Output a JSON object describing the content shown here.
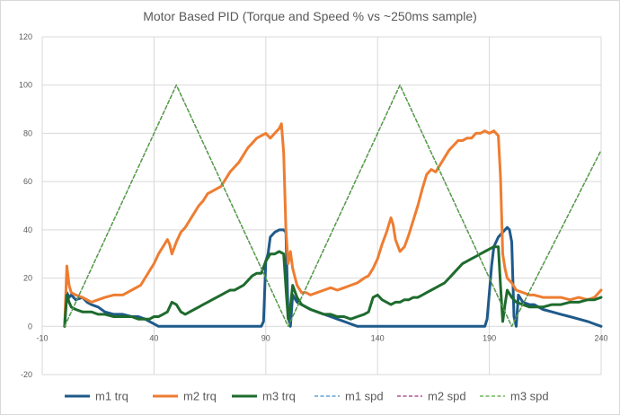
{
  "chart_data": {
    "type": "line",
    "title": "Motor Based PID (Torque and Speed % vs ~250ms sample)",
    "xlabel": "",
    "ylabel": "",
    "xlim": [
      -10,
      240
    ],
    "ylim": [
      -20,
      120
    ],
    "x_ticks": [
      -10,
      40,
      90,
      140,
      190,
      240
    ],
    "y_ticks": [
      -20,
      0,
      20,
      40,
      60,
      80,
      100,
      120
    ],
    "grid": true,
    "legend_position": "bottom",
    "series": [
      {
        "name": "m1 trq",
        "color": "#1f5a8a",
        "style": "solid",
        "points": [
          [
            0,
            0
          ],
          [
            1,
            14
          ],
          [
            2,
            12
          ],
          [
            3,
            13
          ],
          [
            5,
            11
          ],
          [
            8,
            12
          ],
          [
            10,
            10
          ],
          [
            12,
            9
          ],
          [
            15,
            8
          ],
          [
            18,
            6
          ],
          [
            22,
            5
          ],
          [
            26,
            5
          ],
          [
            30,
            4
          ],
          [
            33,
            4
          ],
          [
            36,
            3
          ],
          [
            38,
            2
          ],
          [
            40,
            1
          ],
          [
            42,
            0
          ],
          [
            88,
            0
          ],
          [
            89,
            2
          ],
          [
            90,
            27
          ],
          [
            91,
            30
          ],
          [
            92,
            37
          ],
          [
            94,
            39
          ],
          [
            96,
            40
          ],
          [
            98,
            40
          ],
          [
            99,
            39
          ],
          [
            100,
            4
          ],
          [
            101,
            0
          ],
          [
            102,
            13
          ],
          [
            104,
            10
          ],
          [
            106,
            9
          ],
          [
            108,
            8
          ],
          [
            110,
            7
          ],
          [
            113,
            6
          ],
          [
            116,
            5
          ],
          [
            119,
            4
          ],
          [
            122,
            3
          ],
          [
            125,
            2
          ],
          [
            128,
            1
          ],
          [
            131,
            0
          ],
          [
            188,
            0
          ],
          [
            189,
            3
          ],
          [
            190,
            14
          ],
          [
            191,
            25
          ],
          [
            192,
            33
          ],
          [
            194,
            37
          ],
          [
            196,
            39
          ],
          [
            198,
            41
          ],
          [
            199,
            40
          ],
          [
            200,
            35
          ],
          [
            201,
            4
          ],
          [
            202,
            0
          ],
          [
            203,
            13
          ],
          [
            205,
            10
          ],
          [
            208,
            9
          ],
          [
            210,
            9
          ],
          [
            214,
            7
          ],
          [
            218,
            6
          ],
          [
            222,
            5
          ],
          [
            226,
            4
          ],
          [
            230,
            3
          ],
          [
            234,
            2
          ],
          [
            237,
            1
          ],
          [
            240,
            0
          ]
        ]
      },
      {
        "name": "m2 trq",
        "color": "#ee7d31",
        "style": "solid",
        "points": [
          [
            0,
            0
          ],
          [
            1,
            25
          ],
          [
            2,
            17
          ],
          [
            3,
            14
          ],
          [
            5,
            13
          ],
          [
            8,
            12
          ],
          [
            10,
            11
          ],
          [
            12,
            10
          ],
          [
            15,
            11
          ],
          [
            18,
            12
          ],
          [
            22,
            13
          ],
          [
            26,
            13
          ],
          [
            30,
            15
          ],
          [
            34,
            17
          ],
          [
            36,
            20
          ],
          [
            38,
            23
          ],
          [
            40,
            26
          ],
          [
            42,
            30
          ],
          [
            44,
            33
          ],
          [
            46,
            36
          ],
          [
            47,
            34
          ],
          [
            48,
            30
          ],
          [
            50,
            35
          ],
          [
            52,
            39
          ],
          [
            54,
            41
          ],
          [
            56,
            44
          ],
          [
            58,
            47
          ],
          [
            60,
            50
          ],
          [
            62,
            52
          ],
          [
            64,
            55
          ],
          [
            66,
            56
          ],
          [
            68,
            57
          ],
          [
            70,
            58
          ],
          [
            72,
            61
          ],
          [
            74,
            64
          ],
          [
            76,
            66
          ],
          [
            78,
            68
          ],
          [
            80,
            71
          ],
          [
            82,
            74
          ],
          [
            84,
            76
          ],
          [
            86,
            78
          ],
          [
            88,
            79
          ],
          [
            90,
            80
          ],
          [
            92,
            78
          ],
          [
            94,
            80
          ],
          [
            96,
            82
          ],
          [
            97,
            84
          ],
          [
            98,
            72
          ],
          [
            99,
            40
          ],
          [
            100,
            26
          ],
          [
            101,
            31
          ],
          [
            102,
            24
          ],
          [
            104,
            17
          ],
          [
            106,
            14
          ],
          [
            108,
            14
          ],
          [
            110,
            13
          ],
          [
            113,
            14
          ],
          [
            116,
            15
          ],
          [
            119,
            16
          ],
          [
            122,
            15
          ],
          [
            125,
            16
          ],
          [
            128,
            17
          ],
          [
            131,
            18
          ],
          [
            134,
            20
          ],
          [
            136,
            21
          ],
          [
            138,
            24
          ],
          [
            140,
            28
          ],
          [
            142,
            34
          ],
          [
            144,
            39
          ],
          [
            145,
            42
          ],
          [
            146,
            45
          ],
          [
            147,
            42
          ],
          [
            148,
            36
          ],
          [
            150,
            31
          ],
          [
            152,
            33
          ],
          [
            154,
            38
          ],
          [
            156,
            44
          ],
          [
            158,
            50
          ],
          [
            160,
            57
          ],
          [
            162,
            63
          ],
          [
            164,
            65
          ],
          [
            166,
            64
          ],
          [
            168,
            67
          ],
          [
            170,
            70
          ],
          [
            172,
            73
          ],
          [
            174,
            75
          ],
          [
            176,
            77
          ],
          [
            178,
            77
          ],
          [
            180,
            78
          ],
          [
            182,
            78
          ],
          [
            184,
            80
          ],
          [
            186,
            80
          ],
          [
            188,
            81
          ],
          [
            190,
            80
          ],
          [
            192,
            81
          ],
          [
            194,
            79
          ],
          [
            195,
            62
          ],
          [
            196,
            30
          ],
          [
            197,
            24
          ],
          [
            198,
            20
          ],
          [
            200,
            18
          ],
          [
            202,
            15
          ],
          [
            205,
            14
          ],
          [
            208,
            13
          ],
          [
            210,
            13
          ],
          [
            214,
            12
          ],
          [
            218,
            12
          ],
          [
            222,
            12
          ],
          [
            226,
            11
          ],
          [
            230,
            12
          ],
          [
            234,
            11
          ],
          [
            237,
            12
          ],
          [
            240,
            15
          ]
        ]
      },
      {
        "name": "m3 trq",
        "color": "#1e6b2e",
        "style": "solid",
        "points": [
          [
            0,
            0
          ],
          [
            1,
            13
          ],
          [
            2,
            10
          ],
          [
            3,
            8
          ],
          [
            5,
            7
          ],
          [
            8,
            6
          ],
          [
            10,
            6
          ],
          [
            12,
            6
          ],
          [
            15,
            5
          ],
          [
            18,
            5
          ],
          [
            22,
            4
          ],
          [
            26,
            4
          ],
          [
            30,
            4
          ],
          [
            33,
            3
          ],
          [
            36,
            3
          ],
          [
            38,
            3
          ],
          [
            40,
            4
          ],
          [
            42,
            4
          ],
          [
            44,
            5
          ],
          [
            46,
            6
          ],
          [
            48,
            10
          ],
          [
            50,
            9
          ],
          [
            52,
            6
          ],
          [
            54,
            5
          ],
          [
            56,
            6
          ],
          [
            58,
            7
          ],
          [
            60,
            8
          ],
          [
            62,
            9
          ],
          [
            64,
            10
          ],
          [
            66,
            11
          ],
          [
            68,
            12
          ],
          [
            70,
            13
          ],
          [
            72,
            14
          ],
          [
            74,
            15
          ],
          [
            76,
            15
          ],
          [
            78,
            16
          ],
          [
            80,
            17
          ],
          [
            82,
            19
          ],
          [
            84,
            21
          ],
          [
            86,
            22
          ],
          [
            88,
            22
          ],
          [
            90,
            27
          ],
          [
            92,
            30
          ],
          [
            94,
            30
          ],
          [
            96,
            31
          ],
          [
            98,
            30
          ],
          [
            99,
            16
          ],
          [
            100,
            3
          ],
          [
            101,
            8
          ],
          [
            102,
            17
          ],
          [
            104,
            12
          ],
          [
            106,
            9
          ],
          [
            108,
            8
          ],
          [
            110,
            7
          ],
          [
            113,
            6
          ],
          [
            116,
            5
          ],
          [
            119,
            5
          ],
          [
            122,
            4
          ],
          [
            125,
            4
          ],
          [
            128,
            3
          ],
          [
            131,
            4
          ],
          [
            134,
            5
          ],
          [
            136,
            6
          ],
          [
            138,
            12
          ],
          [
            140,
            13
          ],
          [
            142,
            11
          ],
          [
            144,
            10
          ],
          [
            146,
            9
          ],
          [
            148,
            10
          ],
          [
            150,
            10
          ],
          [
            152,
            11
          ],
          [
            154,
            11
          ],
          [
            156,
            12
          ],
          [
            158,
            12
          ],
          [
            160,
            13
          ],
          [
            162,
            14
          ],
          [
            164,
            15
          ],
          [
            166,
            16
          ],
          [
            168,
            17
          ],
          [
            170,
            18
          ],
          [
            172,
            20
          ],
          [
            174,
            22
          ],
          [
            176,
            24
          ],
          [
            178,
            26
          ],
          [
            180,
            27
          ],
          [
            182,
            28
          ],
          [
            184,
            29
          ],
          [
            186,
            30
          ],
          [
            188,
            31
          ],
          [
            190,
            32
          ],
          [
            192,
            33
          ],
          [
            194,
            33
          ],
          [
            195,
            17
          ],
          [
            196,
            2
          ],
          [
            197,
            9
          ],
          [
            198,
            15
          ],
          [
            200,
            12
          ],
          [
            202,
            10
          ],
          [
            205,
            9
          ],
          [
            208,
            8
          ],
          [
            210,
            8
          ],
          [
            214,
            8
          ],
          [
            218,
            9
          ],
          [
            222,
            9
          ],
          [
            226,
            10
          ],
          [
            230,
            10
          ],
          [
            234,
            11
          ],
          [
            237,
            11
          ],
          [
            240,
            12
          ]
        ]
      },
      {
        "name": "m1 spd",
        "color": "#3a8fd0",
        "style": "dashed",
        "points": [
          [
            0,
            0
          ],
          [
            50,
            100
          ],
          [
            100,
            0
          ],
          [
            150,
            100
          ],
          [
            200,
            0
          ],
          [
            240,
            73
          ]
        ]
      },
      {
        "name": "m2 spd",
        "color": "#a0307a",
        "style": "dashed",
        "points": [
          [
            0,
            0
          ],
          [
            50,
            100
          ],
          [
            100,
            0
          ],
          [
            150,
            100
          ],
          [
            200,
            0
          ],
          [
            240,
            73
          ]
        ]
      },
      {
        "name": "m3 spd",
        "color": "#4fa83c",
        "style": "dashed",
        "points": [
          [
            0,
            0
          ],
          [
            50,
            100
          ],
          [
            100,
            0
          ],
          [
            150,
            100
          ],
          [
            200,
            0
          ],
          [
            240,
            73
          ]
        ]
      }
    ]
  }
}
